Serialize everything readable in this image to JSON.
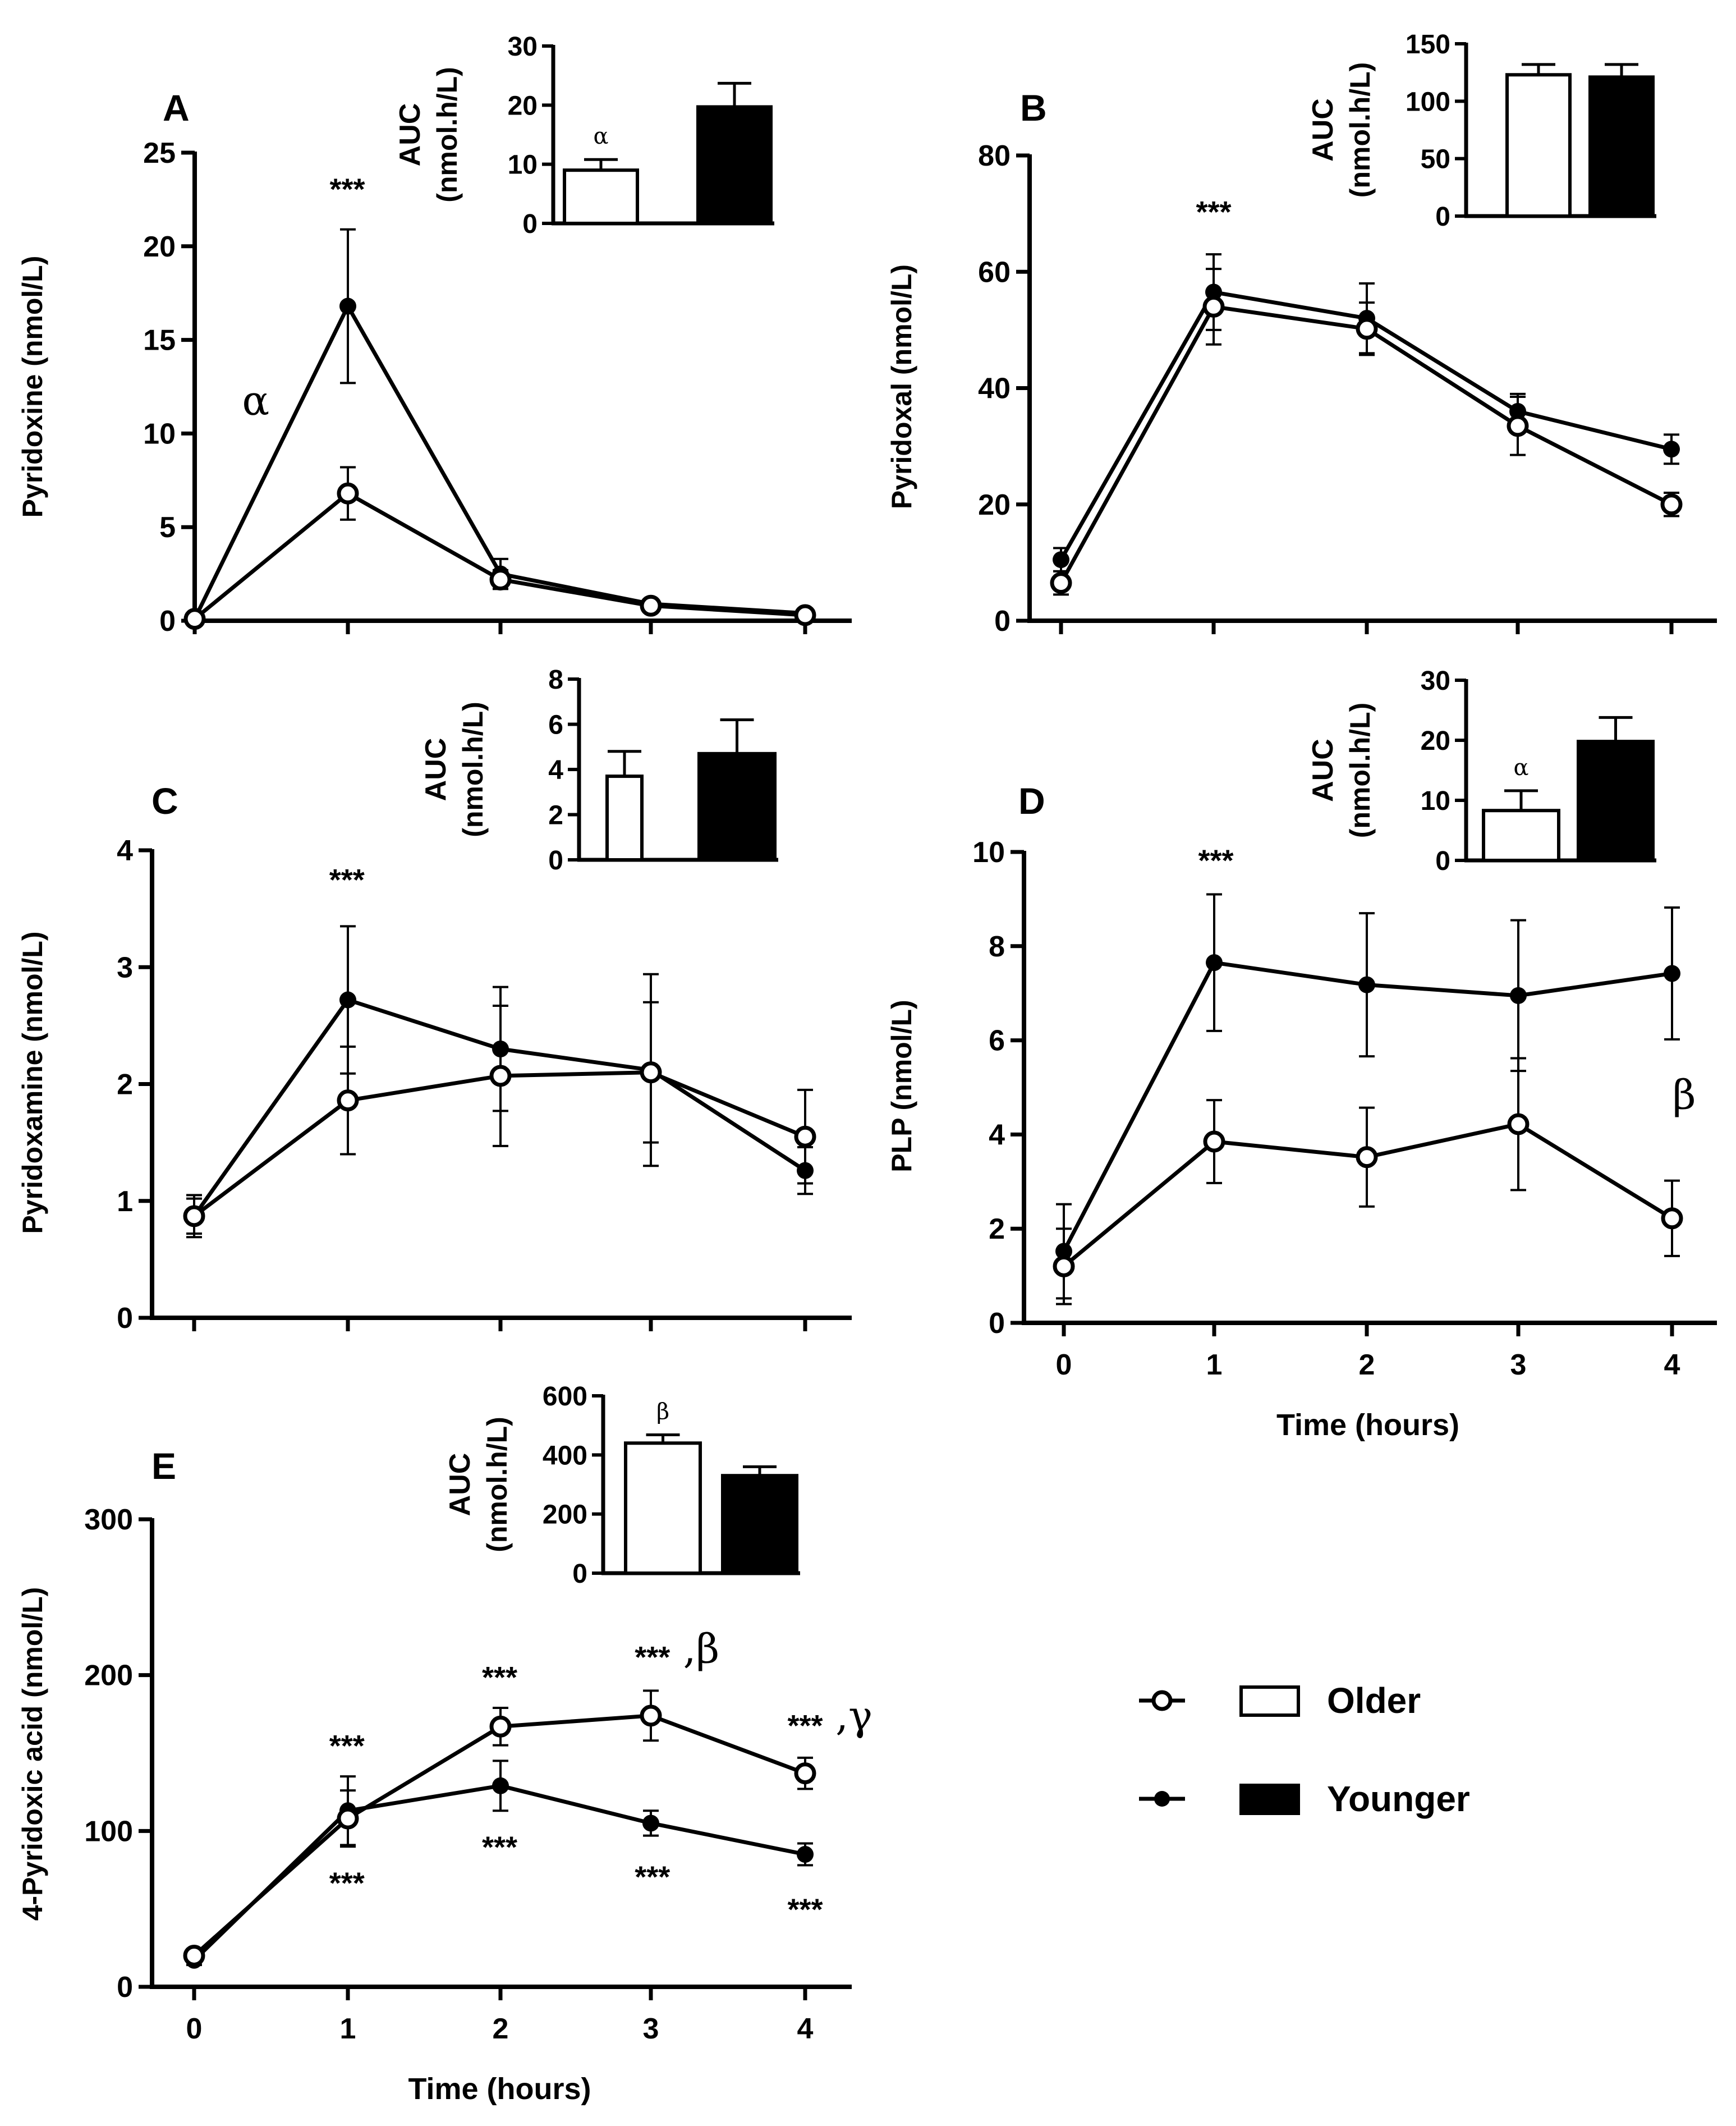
{
  "chart_data": [
    {
      "id": "A",
      "panel_label": "A",
      "type": "line",
      "ylabel": "Pyridoxine (nmol/L)",
      "xlabel": "",
      "ylim": [
        0,
        25
      ],
      "yticks": [
        0,
        5,
        10,
        15,
        20,
        25
      ],
      "x": [
        0,
        1,
        2,
        3,
        4
      ],
      "xtick_labels": [],
      "series": [
        {
          "name": "Older",
          "marker": "open",
          "values": [
            0.1,
            6.8,
            2.2,
            0.8,
            0.3
          ],
          "errors": [
            0.1,
            1.4,
            0.5,
            0.2,
            0.1
          ]
        },
        {
          "name": "Younger",
          "marker": "filled",
          "values": [
            0.1,
            16.8,
            2.5,
            0.9,
            0.4
          ],
          "errors": [
            0.1,
            4.1,
            0.8,
            0.2,
            0.1
          ]
        }
      ],
      "annotations": [
        {
          "text": "***",
          "x": 1,
          "y": 22.5
        },
        {
          "text": "α",
          "x": 0.4,
          "y": 11,
          "greek": true
        }
      ],
      "inset": {
        "type": "bar",
        "ylabel_line1": "AUC",
        "ylabel_line2": "(nmol.h/L)",
        "ylim": [
          0,
          30
        ],
        "yticks": [
          0,
          10,
          20,
          30
        ],
        "categories": [
          "Older",
          "Younger"
        ],
        "values": [
          9,
          19.7
        ],
        "errors": [
          1.8,
          4
        ],
        "bar_annotations": [
          "α",
          ""
        ]
      }
    },
    {
      "id": "B",
      "panel_label": "B",
      "type": "line",
      "ylabel": "Pyridoxal (nmol/L)",
      "xlabel": "",
      "ylim": [
        0,
        80
      ],
      "yticks": [
        0,
        20,
        40,
        60,
        80
      ],
      "x": [
        0,
        1,
        2,
        3,
        4
      ],
      "xtick_labels": [],
      "series": [
        {
          "name": "Older",
          "marker": "open",
          "values": [
            6.5,
            54,
            50.2,
            33.5,
            20
          ],
          "errors": [
            2,
            6.5,
            4.5,
            5,
            2
          ]
        },
        {
          "name": "Younger",
          "marker": "filled",
          "values": [
            10.5,
            56.5,
            52,
            36,
            29.5
          ],
          "errors": [
            2,
            6.5,
            6,
            3,
            2.5
          ]
        }
      ],
      "annotations": [
        {
          "text": "***",
          "x": 1,
          "y": 68.5
        }
      ],
      "inset": {
        "type": "bar",
        "ylabel_line1": "AUC",
        "ylabel_line2": "(nmol.h/L)",
        "ylim": [
          0,
          150
        ],
        "yticks": [
          0,
          50,
          100,
          150
        ],
        "categories": [
          "Older",
          "Younger"
        ],
        "values": [
          123,
          121
        ],
        "errors": [
          9,
          11
        ],
        "bar_annotations": [
          "",
          ""
        ]
      }
    },
    {
      "id": "C",
      "panel_label": "C",
      "type": "line",
      "ylabel": "Pyridoxamine (nmol/L)",
      "xlabel": "",
      "ylim": [
        0,
        4
      ],
      "yticks": [
        0,
        1,
        2,
        3,
        4
      ],
      "x": [
        0,
        1,
        2,
        3,
        4
      ],
      "xtick_labels": [],
      "series": [
        {
          "name": "Older",
          "marker": "open",
          "values": [
            0.87,
            1.86,
            2.07,
            2.1,
            1.55
          ],
          "errors": [
            0.15,
            0.46,
            0.6,
            0.6,
            0.4
          ]
        },
        {
          "name": "Younger",
          "marker": "filled",
          "values": [
            0.87,
            2.72,
            2.3,
            2.12,
            1.26
          ],
          "errors": [
            0.18,
            0.63,
            0.53,
            0.82,
            0.2
          ]
        }
      ],
      "annotations": [
        {
          "text": "***",
          "x": 1,
          "y": 3.66
        }
      ],
      "inset": {
        "type": "bar",
        "ylabel_line1": "AUC",
        "ylabel_line2": "(nmol.h/L)",
        "ylim": [
          0,
          8
        ],
        "yticks": [
          0,
          2,
          4,
          6,
          8
        ],
        "categories": [
          "Older",
          "Younger"
        ],
        "values": [
          3.7,
          4.7
        ],
        "errors": [
          1.1,
          1.5
        ],
        "bar_annotations": [
          "",
          ""
        ]
      }
    },
    {
      "id": "D",
      "panel_label": "D",
      "type": "line",
      "ylabel": "PLP (nmol/L)",
      "xlabel": "Time (hours)",
      "ylim": [
        0,
        10
      ],
      "yticks": [
        0,
        2,
        4,
        6,
        8,
        10
      ],
      "x": [
        0,
        1,
        2,
        3,
        4
      ],
      "xtick_labels": [
        "0",
        "1",
        "2",
        "3",
        "4"
      ],
      "series": [
        {
          "name": "Older",
          "marker": "open",
          "values": [
            1.2,
            3.85,
            3.52,
            4.22,
            2.22
          ],
          "errors": [
            0.8,
            0.88,
            1.05,
            1.4,
            0.8
          ]
        },
        {
          "name": "Younger",
          "marker": "filled",
          "values": [
            1.52,
            7.65,
            7.18,
            6.95,
            7.42
          ],
          "errors": [
            1.0,
            1.45,
            1.52,
            1.6,
            1.4
          ]
        }
      ],
      "annotations": [
        {
          "text": "***",
          "x": 1,
          "y": 9.6
        },
        {
          "text": "β",
          "x": 4.08,
          "y": 4.55,
          "greek": true
        }
      ],
      "inset": {
        "type": "bar",
        "ylabel_line1": "AUC",
        "ylabel_line2": "(nmol.h/L)",
        "ylim": [
          0,
          30
        ],
        "yticks": [
          0,
          10,
          20,
          30
        ],
        "categories": [
          "Older",
          "Younger"
        ],
        "values": [
          8.3,
          19.8
        ],
        "errors": [
          3.3,
          4
        ],
        "bar_annotations": [
          "α",
          ""
        ]
      }
    },
    {
      "id": "E",
      "panel_label": "E",
      "type": "line",
      "ylabel": "4-Pyridoxic acid (nmol/L)",
      "xlabel": "Time (hours)",
      "ylim": [
        0,
        300
      ],
      "yticks": [
        0,
        100,
        200,
        300
      ],
      "x": [
        0,
        1,
        2,
        3,
        4
      ],
      "xtick_labels": [
        "0",
        "1",
        "2",
        "3",
        "4"
      ],
      "series": [
        {
          "name": "Older",
          "marker": "open",
          "values": [
            20,
            108,
            167,
            174,
            137
          ],
          "errors": [
            3,
            18,
            12,
            16,
            10
          ]
        },
        {
          "name": "Younger",
          "marker": "filled",
          "values": [
            17,
            113,
            129,
            105,
            85
          ],
          "errors": [
            3,
            22,
            16,
            8,
            7
          ]
        }
      ],
      "annotations": [
        {
          "text": "***",
          "x": 1,
          "y": 148
        },
        {
          "text": "***",
          "x": 2,
          "y": 192
        },
        {
          "text": "***",
          "x": 3,
          "y": 205
        },
        {
          "text": "***",
          "x": 4,
          "y": 161
        },
        {
          "text": "***",
          "x": 1,
          "y": 60
        },
        {
          "text": "***",
          "x": 2,
          "y": 83
        },
        {
          "text": "***",
          "x": 3,
          "y": 64
        },
        {
          "text": "***",
          "x": 4,
          "y": 43
        },
        {
          "text": ",β",
          "x": 3.32,
          "y": 208,
          "greek": true
        },
        {
          "text": ",γ",
          "x": 4.32,
          "y": 165,
          "greek": true
        }
      ],
      "inset": {
        "type": "bar",
        "ylabel_line1": "AUC",
        "ylabel_line2": "(nmol.h/L)",
        "ylim": [
          0,
          600
        ],
        "yticks": [
          0,
          200,
          400,
          600
        ],
        "categories": [
          "Older",
          "Younger"
        ],
        "values": [
          440,
          330
        ],
        "errors": [
          28,
          30
        ],
        "bar_annotations": [
          "β",
          ""
        ]
      }
    }
  ],
  "legend": {
    "items": [
      {
        "label": "Older",
        "marker": "open",
        "bar_fill": "#ffffff"
      },
      {
        "label": "Younger",
        "marker": "filled",
        "bar_fill": "#000000"
      }
    ]
  },
  "colors": {
    "ink": "#000000",
    "paper": "#ffffff"
  }
}
